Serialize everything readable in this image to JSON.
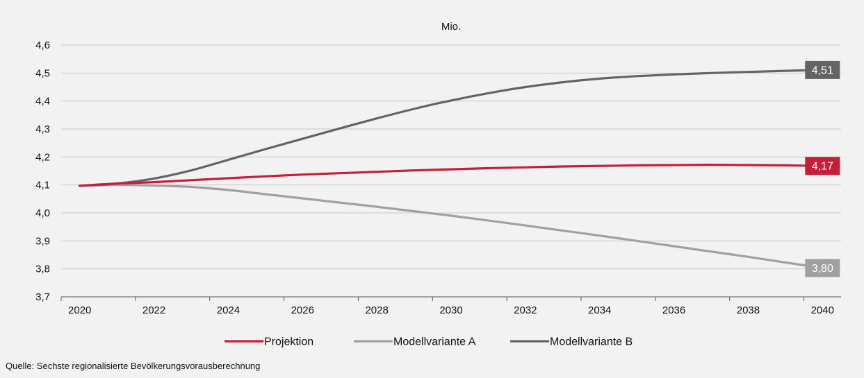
{
  "chart_data": {
    "type": "line",
    "title": "",
    "unit_label": "Mio.",
    "xlabel": "",
    "ylabel": "",
    "x": [
      2020,
      2021,
      2022,
      2023,
      2024,
      2025,
      2026,
      2027,
      2028,
      2029,
      2030,
      2031,
      2032,
      2033,
      2034,
      2035,
      2036,
      2037,
      2038,
      2039,
      2040
    ],
    "x_ticks": [
      "2020",
      "2022",
      "2024",
      "2026",
      "2028",
      "2030",
      "2032",
      "2034",
      "2036",
      "2038",
      "2040"
    ],
    "y_ticks": [
      "3,7",
      "3,8",
      "3,9",
      "4,0",
      "4,1",
      "4,2",
      "4,3",
      "4,4",
      "4,5",
      "4,6"
    ],
    "xlim": [
      2019.5,
      2040.5
    ],
    "ylim": [
      3.7,
      4.6
    ],
    "grid": true,
    "legend_position": "bottom",
    "series": [
      {
        "name": "Projektion",
        "color": "#c41e3a",
        "values": [
          4.097,
          4.105,
          4.11,
          4.117,
          4.124,
          4.131,
          4.137,
          4.142,
          4.147,
          4.152,
          4.156,
          4.16,
          4.163,
          4.166,
          4.168,
          4.17,
          4.171,
          4.172,
          4.171,
          4.17,
          4.168
        ],
        "end_label": "4,17"
      },
      {
        "name": "Modellvariante A",
        "color": "#a0a0a0",
        "values": [
          4.097,
          4.1,
          4.098,
          4.093,
          4.082,
          4.067,
          4.052,
          4.037,
          4.022,
          4.006,
          3.99,
          3.973,
          3.955,
          3.937,
          3.919,
          3.9,
          3.881,
          3.862,
          3.843,
          3.823,
          3.803
        ],
        "end_label": "3,80"
      },
      {
        "name": "Modellvariante B",
        "color": "#646464",
        "values": [
          4.097,
          4.105,
          4.123,
          4.152,
          4.19,
          4.228,
          4.265,
          4.302,
          4.338,
          4.372,
          4.402,
          4.428,
          4.45,
          4.467,
          4.48,
          4.489,
          4.495,
          4.5,
          4.504,
          4.508,
          4.511
        ],
        "end_label": "4,51"
      }
    ]
  },
  "source": "Quelle: Sechste regionalisierte Bevölkerungsvorausberechnung"
}
